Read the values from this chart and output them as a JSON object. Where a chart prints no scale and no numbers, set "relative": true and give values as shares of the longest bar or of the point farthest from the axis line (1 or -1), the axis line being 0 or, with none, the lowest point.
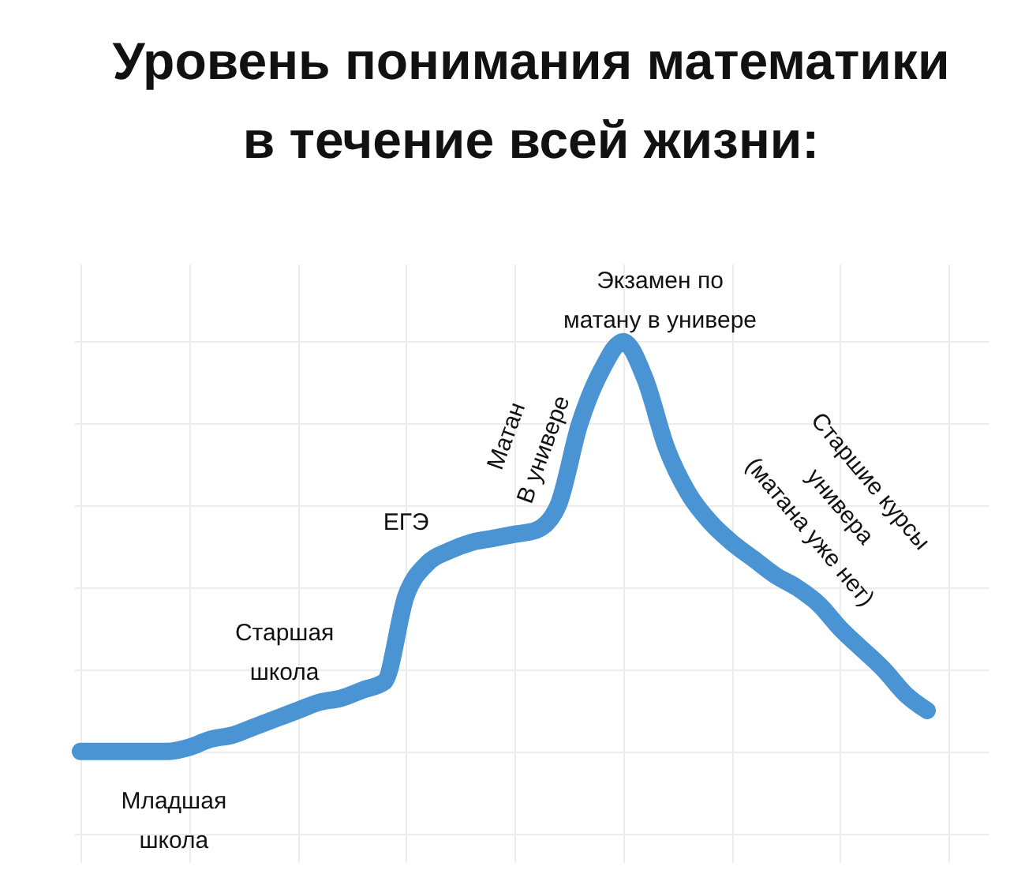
{
  "chart_data": {
    "type": "line",
    "title": "Уровень понимания математики\nв течение всей жизни:",
    "relative": true,
    "grid": true,
    "categories": [
      null,
      null,
      null,
      null,
      null,
      null,
      null,
      null,
      null,
      null,
      null,
      null,
      null,
      null,
      null,
      null,
      null,
      null,
      null,
      null,
      null,
      null,
      null,
      null,
      null,
      null,
      null,
      null,
      null,
      null,
      null,
      null,
      null,
      null,
      null,
      null,
      null,
      null,
      null,
      null
    ],
    "series": [
      {
        "color": "#4a94d4",
        "values": [
          0,
          0,
          0,
          0,
          0,
          0.01,
          0.03,
          0.04,
          0.06,
          0.08,
          0.1,
          0.12,
          0.13,
          0.15,
          0.17,
          0.38,
          0.46,
          0.49,
          0.51,
          0.52,
          0.53,
          0.54,
          0.6,
          0.8,
          0.93,
          1,
          0.91,
          0.74,
          0.63,
          0.56,
          0.51,
          0.47,
          0.43,
          0.4,
          0.36,
          0.3,
          0.25,
          0.2,
          0.14,
          0.1
        ]
      }
    ],
    "annotations": [
      "Младшая\nшкола",
      "Старшая\nшкола",
      "ЕГЭ",
      "Матан\nВ универе",
      "Экзамен по\nматану в универе",
      "Старшие курсы\nунивера\n(матана уже нет)"
    ]
  }
}
